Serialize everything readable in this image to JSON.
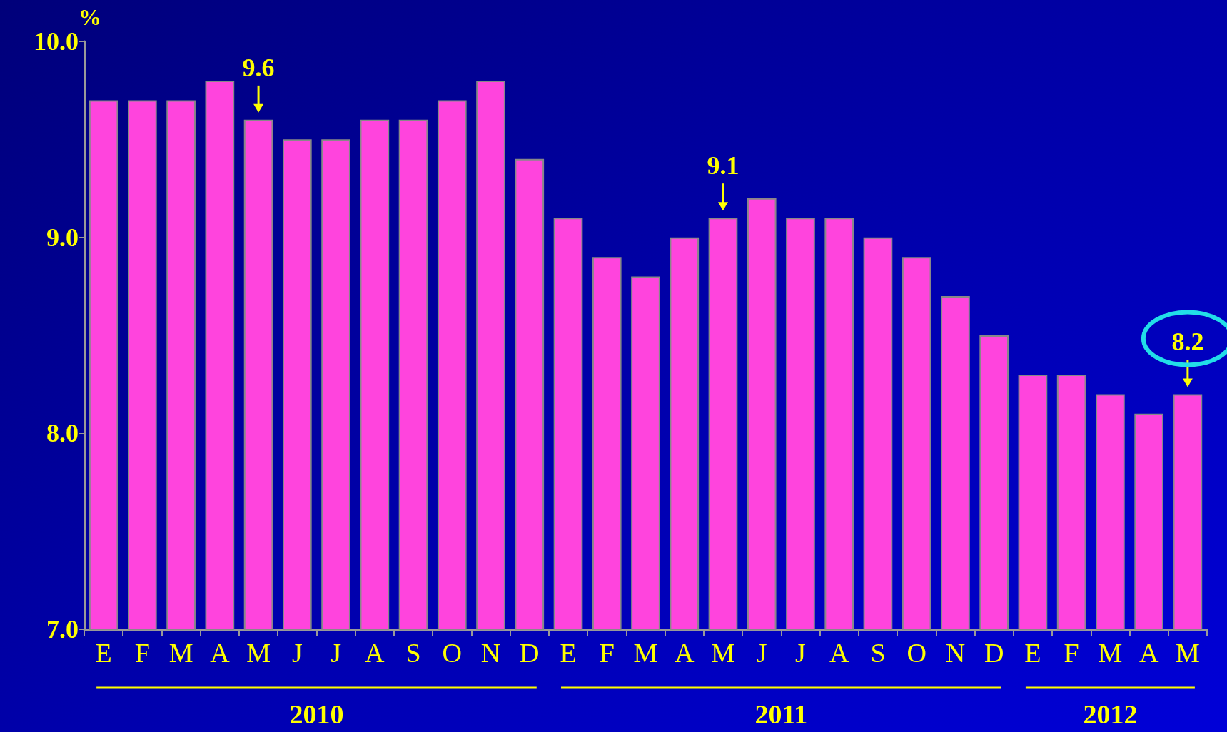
{
  "chart_data": {
    "type": "bar",
    "ylabel": "%",
    "categories": [
      "E",
      "F",
      "M",
      "A",
      "M",
      "J",
      "J",
      "A",
      "S",
      "O",
      "N",
      "D",
      "E",
      "F",
      "M",
      "A",
      "M",
      "J",
      "J",
      "A",
      "S",
      "O",
      "N",
      "D",
      "E",
      "F",
      "M",
      "A",
      "M"
    ],
    "values": [
      9.7,
      9.7,
      9.7,
      9.8,
      9.6,
      9.5,
      9.5,
      9.6,
      9.6,
      9.7,
      9.8,
      9.4,
      9.1,
      8.9,
      8.8,
      9.0,
      9.1,
      9.2,
      9.1,
      9.1,
      9.0,
      8.9,
      8.7,
      8.5,
      8.3,
      8.3,
      8.2,
      8.1,
      8.2
    ],
    "value_labels": [
      null,
      null,
      null,
      null,
      "9.6",
      null,
      null,
      null,
      null,
      null,
      null,
      null,
      null,
      null,
      null,
      null,
      "9.1",
      null,
      null,
      null,
      null,
      null,
      null,
      null,
      null,
      null,
      null,
      null,
      "8.2"
    ],
    "color": "#ff44dd",
    "ylim": [
      7,
      10
    ],
    "yticks": [
      {
        "value": 7,
        "label": "7.0"
      },
      {
        "value": 8,
        "label": "8.0"
      },
      {
        "value": 9,
        "label": "9.0"
      },
      {
        "value": 10,
        "label": "10.0"
      }
    ],
    "grid": false,
    "annotations": [
      "2010",
      "2011",
      "2012"
    ]
  }
}
